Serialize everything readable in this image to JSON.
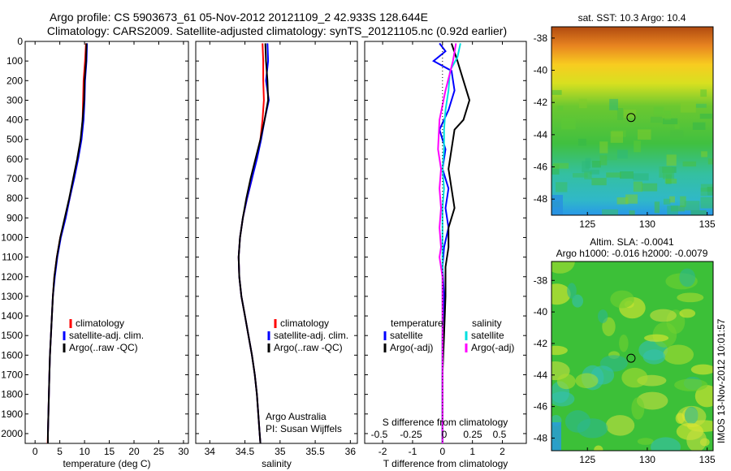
{
  "header": {
    "title_line1": "Argo profile: CS 5903673_61 05-Nov-2012 20121109_2 42.933S 128.644E",
    "title_line2": "Climatology: CARS2009. Satellite-adjusted climatology: synTS_20121105.nc (0.92d earlier)"
  },
  "depth_ticks": [
    0,
    100,
    200,
    300,
    400,
    500,
    600,
    700,
    800,
    900,
    1000,
    1100,
    1200,
    1300,
    1400,
    1500,
    1600,
    1700,
    1800,
    1900,
    2000
  ],
  "side_label": "IMOS 13-Nov-2012 10:01:57",
  "colors": {
    "climatology": "#ff0000",
    "satellite": "#0000ff",
    "argo": "#000000",
    "satellite_salinity": "#00e0e0",
    "argo_salinity": "#ff00ff"
  },
  "chart_data": [
    {
      "type": "line",
      "panel": "temperature",
      "xlabel": "temperature (deg C)",
      "xlim": [
        -2,
        31
      ],
      "ylim": [
        2050,
        0
      ],
      "xticks": [
        0,
        5,
        10,
        15,
        20,
        25,
        30
      ],
      "legend": [
        "climatology",
        "satellite-adj. clim.",
        "Argo(..raw -QC)"
      ],
      "legend_position": "lower-middle",
      "series": [
        {
          "name": "climatology",
          "color": "#ff0000",
          "points": [
            [
              10.3,
              10
            ],
            [
              10.1,
              100
            ],
            [
              9.8,
              200
            ],
            [
              9.7,
              300
            ],
            [
              9.6,
              400
            ],
            [
              9.3,
              500
            ],
            [
              8.6,
              600
            ],
            [
              7.8,
              700
            ],
            [
              7.0,
              800
            ],
            [
              6.1,
              900
            ],
            [
              5.1,
              1000
            ],
            [
              4.4,
              1100
            ],
            [
              3.9,
              1200
            ],
            [
              3.6,
              1300
            ],
            [
              3.4,
              1400
            ],
            [
              3.2,
              1500
            ],
            [
              3.0,
              1600
            ],
            [
              2.9,
              1700
            ],
            [
              2.8,
              1800
            ],
            [
              2.7,
              1900
            ],
            [
              2.6,
              2000
            ],
            [
              2.55,
              2050
            ]
          ]
        },
        {
          "name": "satellite-adj. clim.",
          "color": "#0000ff",
          "points": [
            [
              10.5,
              10
            ],
            [
              10.4,
              100
            ],
            [
              10.1,
              200
            ],
            [
              10.0,
              300
            ],
            [
              9.8,
              400
            ],
            [
              9.4,
              500
            ],
            [
              8.7,
              600
            ],
            [
              7.9,
              700
            ],
            [
              7.0,
              800
            ],
            [
              6.2,
              900
            ],
            [
              5.2,
              1000
            ],
            [
              4.5,
              1100
            ],
            [
              4.0,
              1200
            ],
            [
              3.6,
              1300
            ],
            [
              3.4,
              1400
            ],
            [
              3.2,
              1500
            ],
            [
              3.0,
              1600
            ],
            [
              2.9,
              1700
            ],
            [
              2.8,
              1800
            ],
            [
              2.7,
              1900
            ],
            [
              2.6,
              2000
            ],
            [
              2.6,
              2050
            ]
          ]
        },
        {
          "name": "Argo(..raw -QC)",
          "color": "#000000",
          "points": [
            [
              10.4,
              10
            ],
            [
              10.3,
              100
            ],
            [
              10.0,
              200
            ],
            [
              9.9,
              300
            ],
            [
              9.6,
              400
            ],
            [
              9.2,
              500
            ],
            [
              8.5,
              600
            ],
            [
              7.7,
              700
            ],
            [
              6.9,
              800
            ],
            [
              6.0,
              900
            ],
            [
              5.1,
              1000
            ],
            [
              4.4,
              1100
            ],
            [
              3.9,
              1200
            ],
            [
              3.6,
              1300
            ],
            [
              3.4,
              1400
            ],
            [
              3.2,
              1500
            ],
            [
              3.0,
              1600
            ],
            [
              2.9,
              1700
            ],
            [
              2.8,
              1800
            ],
            [
              2.7,
              1900
            ],
            [
              2.6,
              2000
            ],
            [
              2.6,
              2050
            ]
          ]
        }
      ]
    },
    {
      "type": "line",
      "panel": "salinity",
      "xlabel": "salinity",
      "xlim": [
        33.8,
        36.1
      ],
      "ylim": [
        2050,
        0
      ],
      "xticks": [
        34,
        34.5,
        35,
        35.5,
        36
      ],
      "legend": [
        "climatology",
        "satellite-adj. clim.",
        "Argo(..raw -QC)"
      ],
      "legend_position": "lower-right",
      "annotation": [
        "Argo Australia",
        "PI: Susan Wijffels"
      ],
      "series": [
        {
          "name": "climatology",
          "color": "#ff0000",
          "points": [
            [
              34.75,
              10
            ],
            [
              34.76,
              100
            ],
            [
              34.76,
              200
            ],
            [
              34.77,
              300
            ],
            [
              34.75,
              400
            ],
            [
              34.72,
              500
            ],
            [
              34.66,
              600
            ],
            [
              34.6,
              700
            ],
            [
              34.53,
              800
            ],
            [
              34.47,
              900
            ],
            [
              34.43,
              1000
            ],
            [
              34.41,
              1100
            ],
            [
              34.42,
              1200
            ],
            [
              34.45,
              1300
            ],
            [
              34.5,
              1400
            ],
            [
              34.55,
              1500
            ],
            [
              34.6,
              1600
            ],
            [
              34.64,
              1700
            ],
            [
              34.67,
              1800
            ],
            [
              34.69,
              1900
            ],
            [
              34.71,
              2000
            ],
            [
              34.72,
              2050
            ]
          ]
        },
        {
          "name": "satellite-adj. clim.",
          "color": "#0000ff",
          "points": [
            [
              34.82,
              10
            ],
            [
              34.83,
              100
            ],
            [
              34.8,
              200
            ],
            [
              34.84,
              300
            ],
            [
              34.78,
              400
            ],
            [
              34.73,
              500
            ],
            [
              34.67,
              600
            ],
            [
              34.6,
              700
            ],
            [
              34.53,
              800
            ],
            [
              34.47,
              900
            ],
            [
              34.43,
              1000
            ],
            [
              34.41,
              1100
            ],
            [
              34.42,
              1200
            ],
            [
              34.45,
              1300
            ],
            [
              34.5,
              1400
            ],
            [
              34.55,
              1500
            ],
            [
              34.6,
              1600
            ],
            [
              34.64,
              1700
            ],
            [
              34.67,
              1800
            ],
            [
              34.69,
              1900
            ],
            [
              34.71,
              2000
            ],
            [
              34.72,
              2050
            ]
          ]
        },
        {
          "name": "Argo(..raw -QC)",
          "color": "#000000",
          "points": [
            [
              34.79,
              10
            ],
            [
              34.8,
              100
            ],
            [
              34.82,
              200
            ],
            [
              34.83,
              300
            ],
            [
              34.78,
              400
            ],
            [
              34.72,
              500
            ],
            [
              34.65,
              600
            ],
            [
              34.58,
              700
            ],
            [
              34.52,
              800
            ],
            [
              34.47,
              900
            ],
            [
              34.43,
              1000
            ],
            [
              34.41,
              1100
            ],
            [
              34.42,
              1200
            ],
            [
              34.45,
              1300
            ],
            [
              34.5,
              1400
            ],
            [
              34.55,
              1500
            ],
            [
              34.6,
              1600
            ],
            [
              34.64,
              1700
            ],
            [
              34.67,
              1800
            ],
            [
              34.69,
              1900
            ],
            [
              34.71,
              2000
            ],
            [
              34.72,
              2050
            ]
          ]
        }
      ]
    },
    {
      "type": "line",
      "panel": "difference",
      "xlabel": "T difference from climatology",
      "top_xlabel": "S difference from climatology",
      "xlim": [
        -2.6,
        2.8
      ],
      "ylim": [
        2050,
        0
      ],
      "xticks": [
        -2,
        -1,
        0,
        1,
        2
      ],
      "top_xticks": [
        "-0.5",
        "-0.25",
        "0",
        "0.25",
        "0.5"
      ],
      "legend_titles": [
        "temperature",
        "salinity"
      ],
      "legend": [
        "satellite",
        "Argo(-adj)",
        "satellite",
        "Argo(-adj)"
      ],
      "legend_position": "lower-middle",
      "series": [
        {
          "name": "satellite",
          "group": "temperature",
          "color": "#0000ff",
          "points": [
            [
              -0.1,
              10
            ],
            [
              0.1,
              50
            ],
            [
              -0.3,
              100
            ],
            [
              0.3,
              150
            ],
            [
              0.4,
              250
            ],
            [
              0.2,
              350
            ],
            [
              -0.1,
              450
            ],
            [
              0.1,
              550
            ],
            [
              0,
              650
            ],
            [
              0.2,
              750
            ],
            [
              0.1,
              850
            ],
            [
              0.2,
              950
            ],
            [
              0.05,
              1050
            ],
            [
              0,
              1150
            ],
            [
              0.05,
              1300
            ],
            [
              0,
              1500
            ],
            [
              0,
              1700
            ],
            [
              0,
              2000
            ],
            [
              0,
              2050
            ]
          ]
        },
        {
          "name": "Argo(-adj)",
          "group": "temperature",
          "color": "#000000",
          "points": [
            [
              0.3,
              10
            ],
            [
              0.5,
              100
            ],
            [
              0.7,
              200
            ],
            [
              0.9,
              300
            ],
            [
              0.7,
              400
            ],
            [
              0.4,
              450
            ],
            [
              0.3,
              550
            ],
            [
              0.2,
              650
            ],
            [
              0.3,
              750
            ],
            [
              0.4,
              850
            ],
            [
              0.2,
              950
            ],
            [
              0.2,
              1050
            ],
            [
              0.1,
              1150
            ],
            [
              0.1,
              1300
            ],
            [
              0.05,
              1500
            ],
            [
              0,
              1700
            ],
            [
              0,
              2000
            ],
            [
              0,
              2050
            ]
          ]
        },
        {
          "name": "satellite",
          "group": "salinity",
          "color": "#00e0e0",
          "points": [
            [
              0.6,
              10
            ],
            [
              0.5,
              80
            ],
            [
              0.25,
              150
            ],
            [
              0.2,
              250
            ],
            [
              0.1,
              350
            ],
            [
              0.05,
              450
            ],
            [
              0.05,
              550
            ],
            [
              0,
              650
            ],
            [
              0.05,
              750
            ],
            [
              0,
              850
            ],
            [
              0,
              1000
            ],
            [
              0,
              1200
            ],
            [
              0,
              1500
            ],
            [
              0,
              2000
            ],
            [
              0,
              2050
            ]
          ]
        },
        {
          "name": "Argo(-adj)",
          "group": "salinity",
          "color": "#ff00ff",
          "points": [
            [
              0.45,
              10
            ],
            [
              0.35,
              100
            ],
            [
              0.1,
              250
            ],
            [
              -0.1,
              400
            ],
            [
              -0.15,
              550
            ],
            [
              -0.05,
              650
            ],
            [
              -0.1,
              750
            ],
            [
              -0.05,
              850
            ],
            [
              -0.1,
              950
            ],
            [
              -0.05,
              1050
            ],
            [
              -0.1,
              1100
            ],
            [
              0,
              1200
            ],
            [
              0,
              1500
            ],
            [
              0,
              2000
            ],
            [
              0,
              2050
            ]
          ]
        }
      ]
    },
    {
      "type": "heatmap",
      "panel": "sst_map",
      "title": "sat. SST: 10.3 Argo: 10.4",
      "xticks": [
        125,
        130,
        135
      ],
      "yticks": [
        -38,
        -40,
        -42,
        -44,
        -46,
        -48
      ],
      "xlim": [
        122,
        135.5
      ],
      "ylim": [
        -49,
        -37.3
      ],
      "marker": [
        128.644,
        -42.933
      ]
    },
    {
      "type": "heatmap",
      "panel": "sla_map",
      "title_line1": "Altim. SLA: -0.0041",
      "title_line2": "Argo h1000: -0.016 h2000: -0.0079",
      "xticks": [
        125,
        130,
        135
      ],
      "yticks": [
        -38,
        -40,
        -42,
        -44,
        -46,
        -48
      ],
      "xlim": [
        122,
        135.5
      ],
      "ylim": [
        -48.8,
        -36.8
      ],
      "marker": [
        128.644,
        -42.933
      ]
    }
  ]
}
